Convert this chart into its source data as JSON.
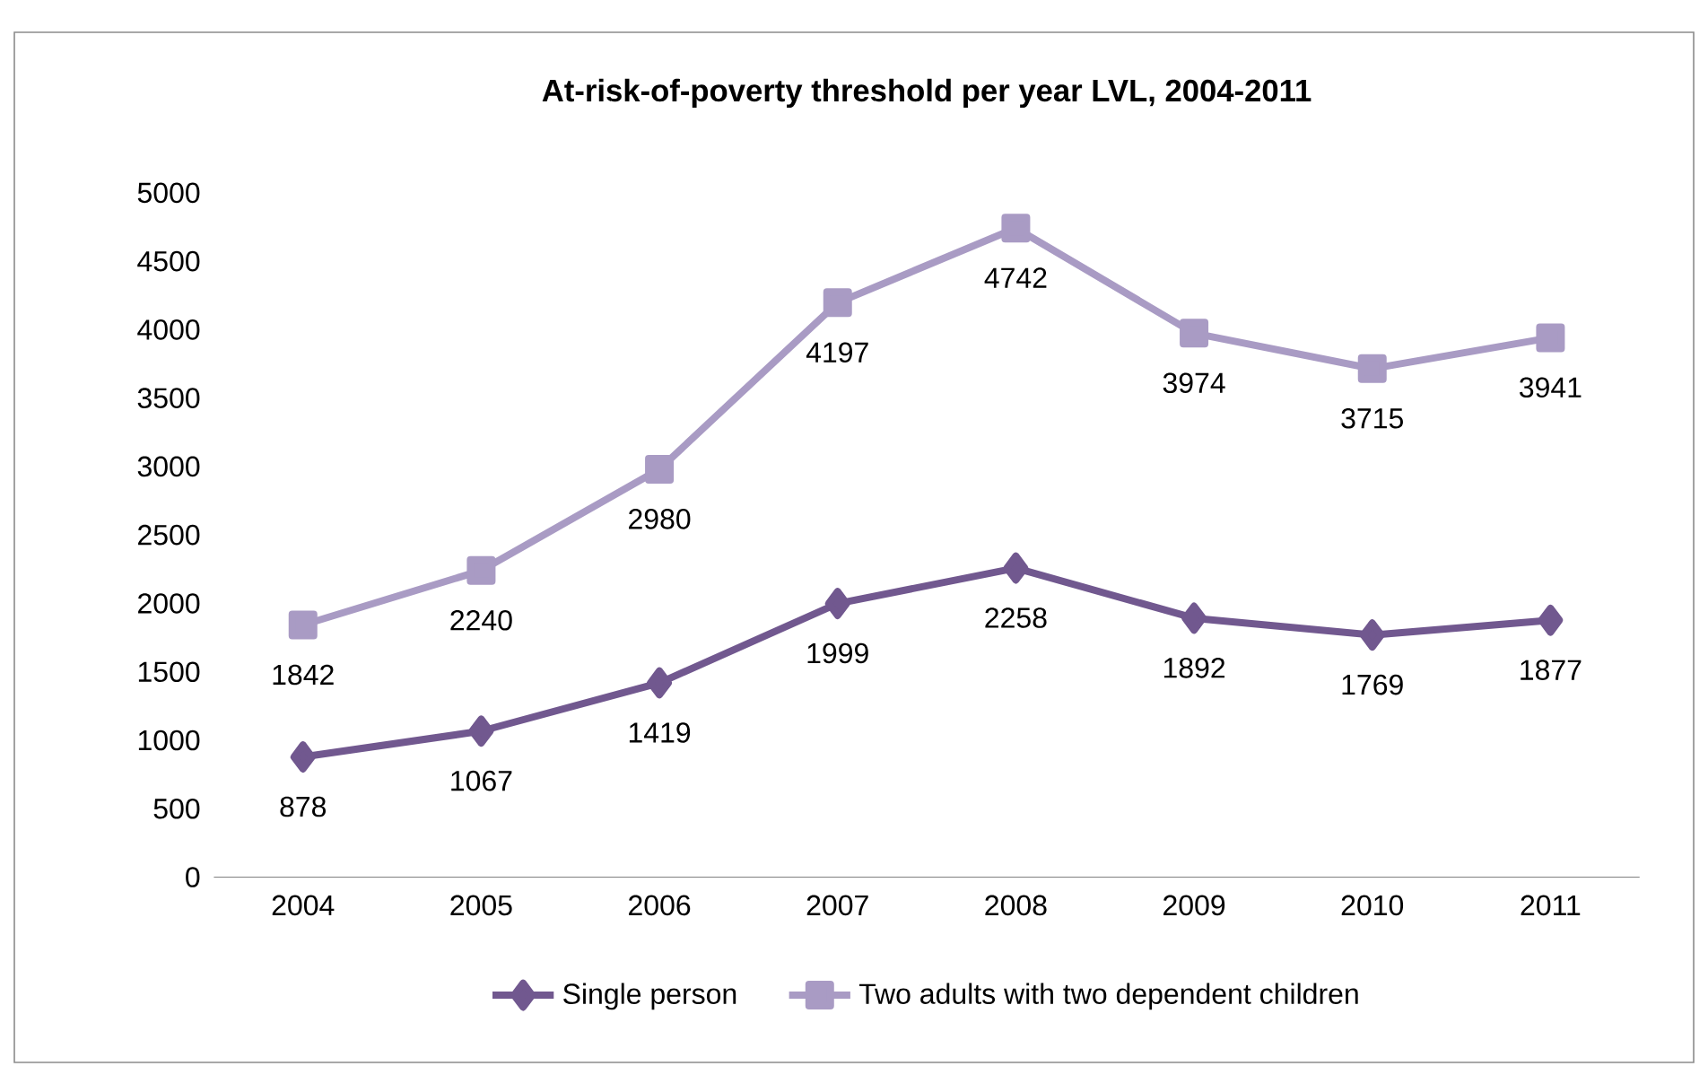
{
  "chart_data": {
    "type": "line",
    "title": "At-risk-of-poverty threshold per year LVL, 2004-2011",
    "categories": [
      "2004",
      "2005",
      "2006",
      "2007",
      "2008",
      "2009",
      "2010",
      "2011"
    ],
    "series": [
      {
        "name": "Single person",
        "color": "#71588f",
        "marker": "diamond",
        "values": [
          878,
          1067,
          1419,
          1999,
          2258,
          1892,
          1769,
          1877
        ]
      },
      {
        "name": "Two adults with two dependent children",
        "color": "#a99bc4",
        "marker": "square",
        "values": [
          1842,
          2240,
          2980,
          4197,
          4742,
          3974,
          3715,
          3941
        ]
      }
    ],
    "ylim": [
      0,
      5000
    ],
    "yticks": [
      0,
      500,
      1000,
      1500,
      2000,
      2500,
      3000,
      3500,
      4000,
      4500,
      5000
    ],
    "data_labels": true,
    "legend": "bottom",
    "grid": false,
    "line_style": "solid"
  }
}
